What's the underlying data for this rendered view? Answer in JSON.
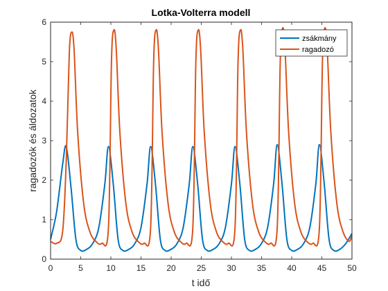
{
  "chart_data": {
    "type": "line",
    "title": "Lotka-Volterra modell",
    "xlabel": "t idő",
    "ylabel": "ragadozók és áldozatok",
    "xlim": [
      0,
      50
    ],
    "ylim": [
      0,
      6
    ],
    "xticks": [
      "0",
      "5",
      "10",
      "15",
      "20",
      "25",
      "30",
      "35",
      "40",
      "45",
      "50"
    ],
    "yticks": [
      "0",
      "1",
      "2",
      "3",
      "4",
      "5",
      "6"
    ],
    "grid": false,
    "legend_position": "top-right",
    "series": [
      {
        "name": "zsákmány",
        "color": "#0072BD",
        "x": [
          0,
          1,
          2,
          2.6,
          3.4,
          4.2,
          5,
          6,
          7,
          8,
          9,
          9.6,
          10.4,
          11.2,
          12,
          13,
          14,
          15,
          16,
          16.6,
          17.4,
          18.2,
          19,
          20,
          21,
          22,
          23,
          23.6,
          24.4,
          25.2,
          26,
          27,
          28,
          29,
          30,
          30.6,
          31.4,
          32.2,
          33,
          34,
          35,
          36,
          37,
          37.6,
          38.4,
          39.2,
          40,
          41,
          42,
          43,
          44,
          44.6,
          45.4,
          46.2,
          47,
          48,
          49,
          50
        ],
        "y": [
          0.5,
          1.2,
          2.4,
          2.85,
          1.8,
          0.5,
          0.22,
          0.25,
          0.4,
          0.8,
          1.9,
          2.85,
          1.9,
          0.5,
          0.22,
          0.25,
          0.4,
          0.8,
          1.9,
          2.85,
          1.9,
          0.5,
          0.22,
          0.25,
          0.4,
          0.8,
          1.9,
          2.85,
          1.9,
          0.5,
          0.22,
          0.25,
          0.4,
          0.8,
          1.9,
          2.85,
          1.9,
          0.5,
          0.22,
          0.25,
          0.4,
          0.8,
          1.9,
          2.9,
          1.9,
          0.5,
          0.22,
          0.25,
          0.4,
          0.8,
          1.9,
          2.9,
          1.9,
          0.5,
          0.22,
          0.25,
          0.4,
          0.65
        ]
      },
      {
        "name": "ragadozó",
        "color": "#D95319",
        "x": [
          0,
          1,
          2,
          2.6,
          3.1,
          3.5,
          3.9,
          4.5,
          5.5,
          6.5,
          7.5,
          8.5,
          9.6,
          10.1,
          10.5,
          10.9,
          11.5,
          12.5,
          13.5,
          14.5,
          15.5,
          16.6,
          17.1,
          17.5,
          17.9,
          18.5,
          19.5,
          20.5,
          21.5,
          22.5,
          23.6,
          24.1,
          24.5,
          24.9,
          25.5,
          26.5,
          27.5,
          28.5,
          29.5,
          30.6,
          31.1,
          31.5,
          31.9,
          32.5,
          33.5,
          34.5,
          35.5,
          36.5,
          37.6,
          38.1,
          38.5,
          38.9,
          39.5,
          40.5,
          41.5,
          42.5,
          43.5,
          44.6,
          45.1,
          45.5,
          45.9,
          46.5,
          47.5,
          48.5,
          49.5,
          50
        ],
        "y": [
          0.45,
          0.4,
          0.7,
          2.5,
          5.2,
          5.75,
          5.3,
          3.2,
          1.4,
          0.7,
          0.45,
          0.4,
          0.8,
          5.0,
          5.8,
          5.3,
          3.2,
          1.4,
          0.7,
          0.45,
          0.4,
          0.8,
          5.0,
          5.8,
          5.3,
          3.2,
          1.4,
          0.7,
          0.45,
          0.4,
          0.8,
          5.0,
          5.8,
          5.3,
          3.2,
          1.4,
          0.7,
          0.45,
          0.4,
          0.8,
          5.0,
          5.8,
          5.3,
          3.2,
          1.4,
          0.7,
          0.45,
          0.4,
          0.8,
          5.0,
          5.85,
          5.3,
          3.2,
          1.4,
          0.7,
          0.45,
          0.4,
          0.8,
          5.0,
          5.85,
          5.3,
          3.2,
          1.4,
          0.7,
          0.45,
          0.6
        ]
      }
    ]
  }
}
